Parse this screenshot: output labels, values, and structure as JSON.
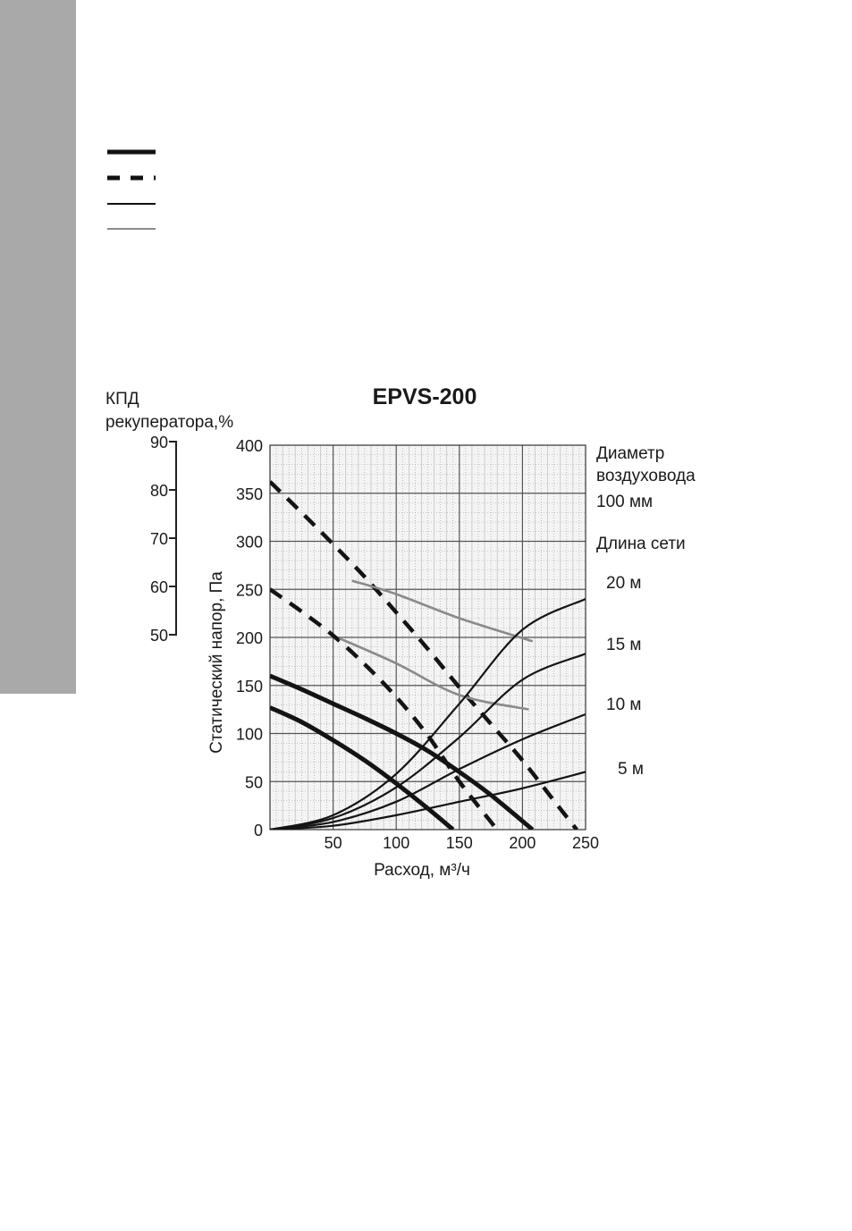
{
  "page": {
    "band_color": "#a9a9a9",
    "legend_styles": [
      "thick-solid",
      "thick-dashed",
      "thin-solid",
      "thin-gray"
    ]
  },
  "chart_data": {
    "type": "line",
    "title": "EPVS-200",
    "xlabel": "Расход, м³/ч",
    "ylabel": "Статический напор, Па",
    "secondary_axis_label_line1": "КПД",
    "secondary_axis_label_line2": "рекуператора,%",
    "xlim": [
      0,
      250
    ],
    "ylim": [
      0,
      400
    ],
    "x_ticks": [
      "50",
      "100",
      "150",
      "200",
      "250"
    ],
    "x_tick_values": [
      50,
      100,
      150,
      200,
      250
    ],
    "y_ticks": [
      "0",
      "50",
      "100",
      "150",
      "200",
      "250",
      "300",
      "350",
      "400"
    ],
    "y_tick_values": [
      0,
      50,
      100,
      150,
      200,
      250,
      300,
      350,
      400
    ],
    "eff_ticks": [
      "90",
      "80",
      "70",
      "60",
      "50"
    ],
    "eff_tick_values": [
      90,
      80,
      70,
      60,
      50
    ],
    "eff_range": [
      50,
      90
    ],
    "grid": true,
    "right_annotations": {
      "diameter_title_1": "Диаметр",
      "diameter_title_2": "воздуховода",
      "diameter_value": "100 мм",
      "length_title": "Длина сети",
      "length_20": "20 м",
      "length_15": "15 м",
      "length_10": "10 м",
      "length_5": "5 м"
    },
    "series": [
      {
        "style": "thick-solid",
        "x": [
          0,
          25,
          50,
          75,
          100,
          125,
          145
        ],
        "y": [
          127,
          112,
          93,
          72,
          48,
          22,
          0
        ]
      },
      {
        "style": "thick-solid",
        "x": [
          0,
          25,
          50,
          75,
          100,
          125,
          150,
          175,
          208
        ],
        "y": [
          160,
          146,
          131,
          116,
          100,
          82,
          60,
          36,
          0
        ]
      },
      {
        "style": "thick-dashed",
        "x": [
          0,
          25,
          50,
          75,
          100,
          125,
          150,
          175,
          180
        ],
        "y": [
          250,
          227,
          202,
          172,
          138,
          98,
          50,
          8,
          0
        ]
      },
      {
        "style": "thick-dashed",
        "x": [
          0,
          25,
          50,
          75,
          100,
          125,
          150,
          175,
          200,
          225,
          243
        ],
        "y": [
          362,
          330,
          297,
          263,
          226,
          188,
          148,
          110,
          72,
          30,
          0
        ]
      },
      {
        "style": "thin-gray",
        "x": [
          65,
          100,
          150,
          208
        ],
        "y": [
          259,
          245,
          220,
          196
        ]
      },
      {
        "style": "thin-gray",
        "x": [
          55,
          100,
          150,
          205
        ],
        "y": [
          199,
          173,
          140,
          125
        ]
      },
      {
        "style": "thin-solid",
        "x": [
          0,
          50,
          100,
          150,
          200,
          250
        ],
        "y": [
          0,
          15,
          58,
          131,
          208,
          240
        ]
      },
      {
        "style": "thin-solid",
        "x": [
          0,
          50,
          100,
          150,
          200,
          250
        ],
        "y": [
          0,
          12,
          44,
          96,
          156,
          183
        ]
      },
      {
        "style": "thin-solid",
        "x": [
          0,
          50,
          100,
          150,
          200,
          250
        ],
        "y": [
          0,
          8,
          29,
          63,
          94,
          120
        ]
      },
      {
        "style": "thin-solid",
        "x": [
          0,
          50,
          100,
          150,
          200,
          250
        ],
        "y": [
          0,
          4,
          15,
          29,
          43,
          60
        ]
      }
    ]
  }
}
